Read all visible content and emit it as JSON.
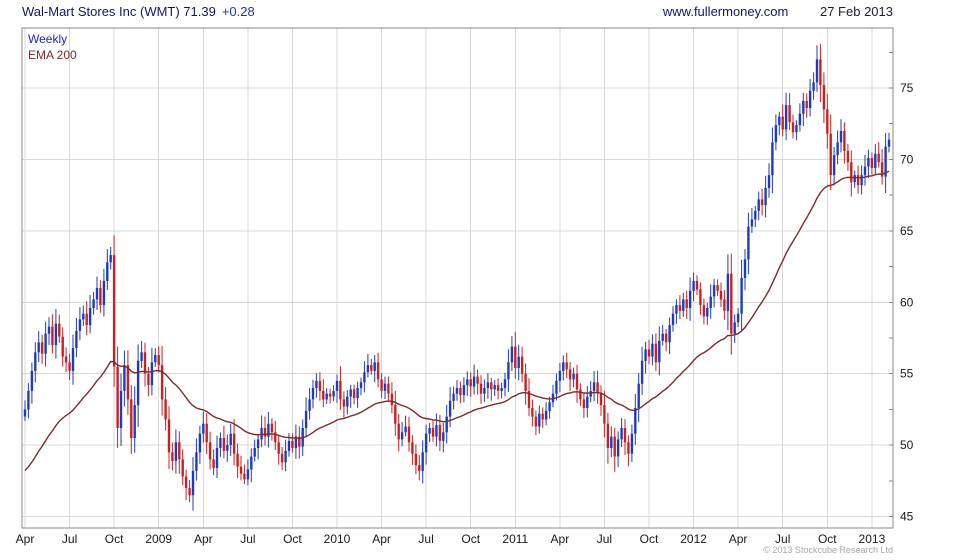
{
  "header": {
    "title": "Wal-Mart Stores Inc (WMT) 71.39",
    "change": "+0.28",
    "site": "www.fullermoney.com",
    "date": "27 Feb 2013"
  },
  "legend": {
    "timeframe": "Weekly",
    "ema_label": "EMA 200"
  },
  "footer": {
    "copyright": "© 2013 Stockcube Research Ltd"
  },
  "colors": {
    "up_bar": "#1e3bbf",
    "down_bar": "#cc2020",
    "ema_line": "#7a2b2b",
    "grid": "#d9d9d9",
    "border": "#8a8a8a",
    "axis_text": "#1a1a1a"
  },
  "chart_data": {
    "type": "candlestick",
    "title": "Wal-Mart Stores Inc (WMT) Weekly",
    "frequency": "weekly",
    "start": "2008-04",
    "end": "2013-02-27",
    "last_close": 71.39,
    "last_change": 0.28,
    "ylim": [
      44.2,
      79.2
    ],
    "y_ticks": [
      45,
      50,
      55,
      60,
      65,
      70,
      75
    ],
    "y_minor_step": 2.5,
    "grid": true,
    "x_tick_labels": [
      "Apr",
      "Jul",
      "Oct",
      "2009",
      "Apr",
      "Jul",
      "Oct",
      "2010",
      "Apr",
      "Jul",
      "Oct",
      "2011",
      "Apr",
      "Jul",
      "Oct",
      "2012",
      "Apr",
      "Jul",
      "Oct",
      "2013"
    ],
    "x_tick_weeks": [
      0,
      13,
      26,
      39,
      52,
      65,
      78,
      91,
      104,
      117,
      130,
      143,
      156,
      169,
      182,
      195,
      208,
      221,
      234,
      247
    ],
    "ema_label": "EMA 200",
    "ema_period_weeks": 40,
    "ema_seed": 48.0,
    "closes": [
      52.5,
      53.8,
      55.2,
      56.5,
      57.2,
      56.4,
      57.8,
      58.3,
      57.0,
      58.5,
      57.6,
      56.2,
      55.8,
      55.2,
      56.8,
      58.0,
      58.8,
      59.2,
      58.4,
      59.6,
      60.2,
      61.0,
      59.8,
      61.5,
      62.8,
      63.3,
      55.5,
      51.2,
      53.8,
      55.6,
      53.2,
      50.5,
      52.8,
      55.9,
      56.5,
      55.0,
      54.2,
      55.8,
      56.3,
      55.6,
      53.2,
      51.8,
      49.5,
      48.9,
      50.2,
      49.0,
      47.8,
      47.0,
      46.5,
      48.2,
      49.5,
      50.8,
      51.5,
      50.2,
      49.0,
      48.4,
      49.8,
      50.5,
      49.6,
      50.0,
      50.8,
      49.4,
      48.5,
      48.0,
      47.6,
      48.3,
      49.2,
      49.8,
      50.4,
      51.2,
      50.6,
      51.5,
      50.9,
      50.2,
      49.4,
      48.8,
      49.6,
      50.3,
      49.8,
      50.6,
      49.9,
      51.2,
      52.4,
      53.2,
      54.0,
      54.5,
      53.8,
      53.2,
      53.6,
      53.4,
      53.8,
      54.5,
      53.2,
      52.7,
      53.4,
      53.9,
      53.3,
      54.0,
      54.4,
      55.1,
      55.6,
      55.2,
      55.8,
      54.6,
      53.8,
      54.3,
      53.6,
      52.8,
      51.5,
      50.4,
      50.9,
      51.3,
      50.2,
      49.4,
      48.6,
      48.2,
      49.5,
      50.8,
      51.2,
      50.6,
      51.4,
      50.3,
      50.9,
      52.0,
      53.1,
      53.6,
      54.0,
      53.5,
      54.2,
      54.6,
      54.1,
      54.8,
      54.3,
      53.6,
      54.0,
      54.4,
      53.9,
      54.2,
      53.8,
      54.0,
      54.6,
      55.8,
      56.9,
      55.4,
      56.2,
      55.0,
      53.8,
      52.6,
      52.0,
      51.3,
      52.2,
      51.8,
      52.4,
      53.0,
      53.6,
      54.5,
      55.2,
      55.8,
      55.3,
      54.6,
      55.0,
      53.9,
      53.2,
      52.6,
      53.4,
      53.8,
      54.4,
      53.6,
      52.8,
      51.5,
      49.8,
      50.6,
      49.2,
      50.4,
      51.2,
      50.2,
      49.4,
      50.8,
      52.6,
      54.3,
      55.9,
      56.7,
      56.2,
      57.1,
      55.8,
      57.3,
      57.8,
      57.2,
      58.4,
      59.2,
      59.8,
      59.4,
      60.2,
      59.6,
      60.8,
      61.5,
      60.9,
      59.8,
      59.0,
      59.6,
      60.4,
      61.2,
      60.8,
      60.2,
      59.4,
      62.0,
      57.8,
      58.6,
      59.2,
      61.7,
      63.0,
      65.3,
      65.8,
      66.4,
      67.2,
      66.8,
      68.0,
      68.9,
      71.2,
      72.4,
      73.0,
      72.1,
      73.8,
      72.6,
      71.9,
      72.4,
      73.2,
      74.1,
      73.6,
      74.8,
      75.4,
      77.0,
      75.2,
      73.5,
      71.8,
      68.9,
      70.3,
      71.2,
      72.0,
      70.6,
      69.8,
      68.4,
      68.9,
      68.2,
      68.9,
      69.5,
      70.1,
      69.4,
      70.4,
      69.8,
      68.8,
      70.9,
      71.39
    ]
  }
}
